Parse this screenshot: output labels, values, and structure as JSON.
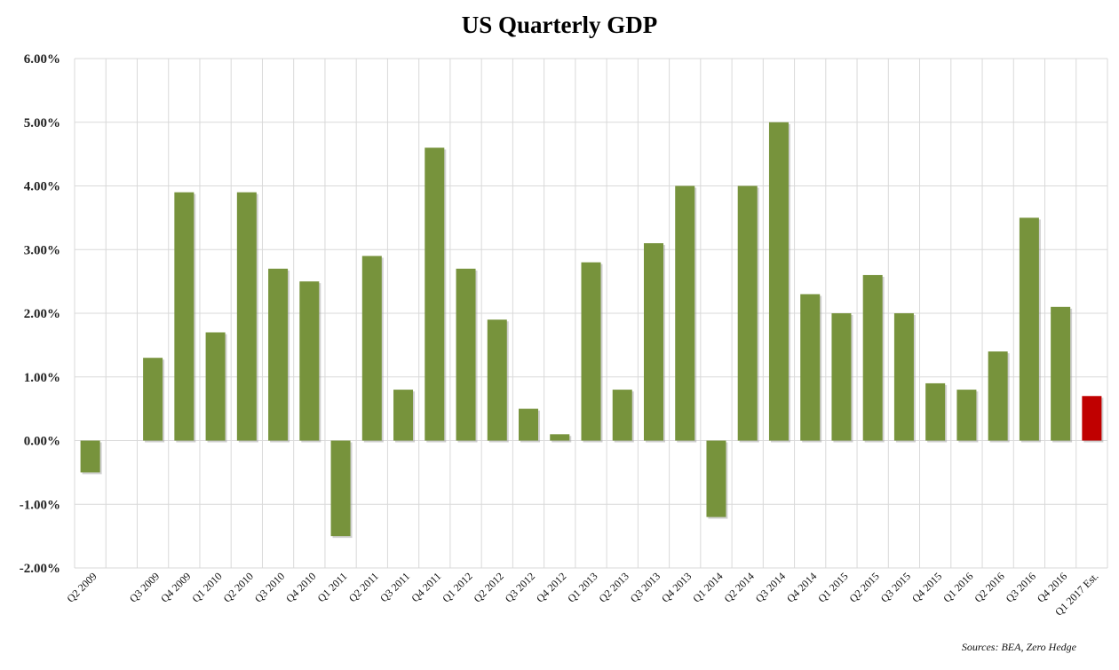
{
  "chart_data": {
    "type": "bar",
    "title": "US Quarterly GDP",
    "source": "Sources: BEA, Zero Hedge",
    "categories": [
      "Q2 2009",
      "",
      "Q3 2009",
      "Q4 2009",
      "Q1 2010",
      "Q2 2010",
      "Q3 2010",
      "Q4 2010",
      "Q1 2011",
      "Q2 2011",
      "Q3 2011",
      "Q4 2011",
      "Q1 2012",
      "Q2 2012",
      "Q3 2012",
      "Q4 2012",
      "Q1 2013",
      "Q2 2013",
      "Q3 2013",
      "Q4 2013",
      "Q1 2014",
      "Q2 2014",
      "Q3 2014",
      "Q4 2014",
      "Q1 2015",
      "Q2 2015",
      "Q3 2015",
      "Q4 2015",
      "Q1 2016",
      "Q2 2016",
      "Q3 2016",
      "Q4 2016",
      "Q1 2017 Est."
    ],
    "values": [
      -0.5,
      null,
      1.3,
      3.9,
      1.7,
      3.9,
      2.7,
      2.5,
      -1.5,
      2.9,
      0.8,
      4.6,
      2.7,
      1.9,
      0.5,
      0.1,
      2.8,
      0.8,
      3.1,
      4.0,
      -1.2,
      4.0,
      5.0,
      2.3,
      2.0,
      2.6,
      2.0,
      0.9,
      0.8,
      1.4,
      3.5,
      2.1,
      0.7
    ],
    "y_ticks": [
      "6.00%",
      "5.00%",
      "4.00%",
      "3.00%",
      "2.00%",
      "1.00%",
      "0.00%",
      "-1.00%",
      "-2.00%"
    ],
    "ylim": [
      -2,
      6
    ],
    "grid": true,
    "legend": "none",
    "colors": {
      "bar": "#77933C",
      "highlight": "#C00000",
      "grid": "#D9D9D9"
    },
    "highlight_index": 32
  }
}
